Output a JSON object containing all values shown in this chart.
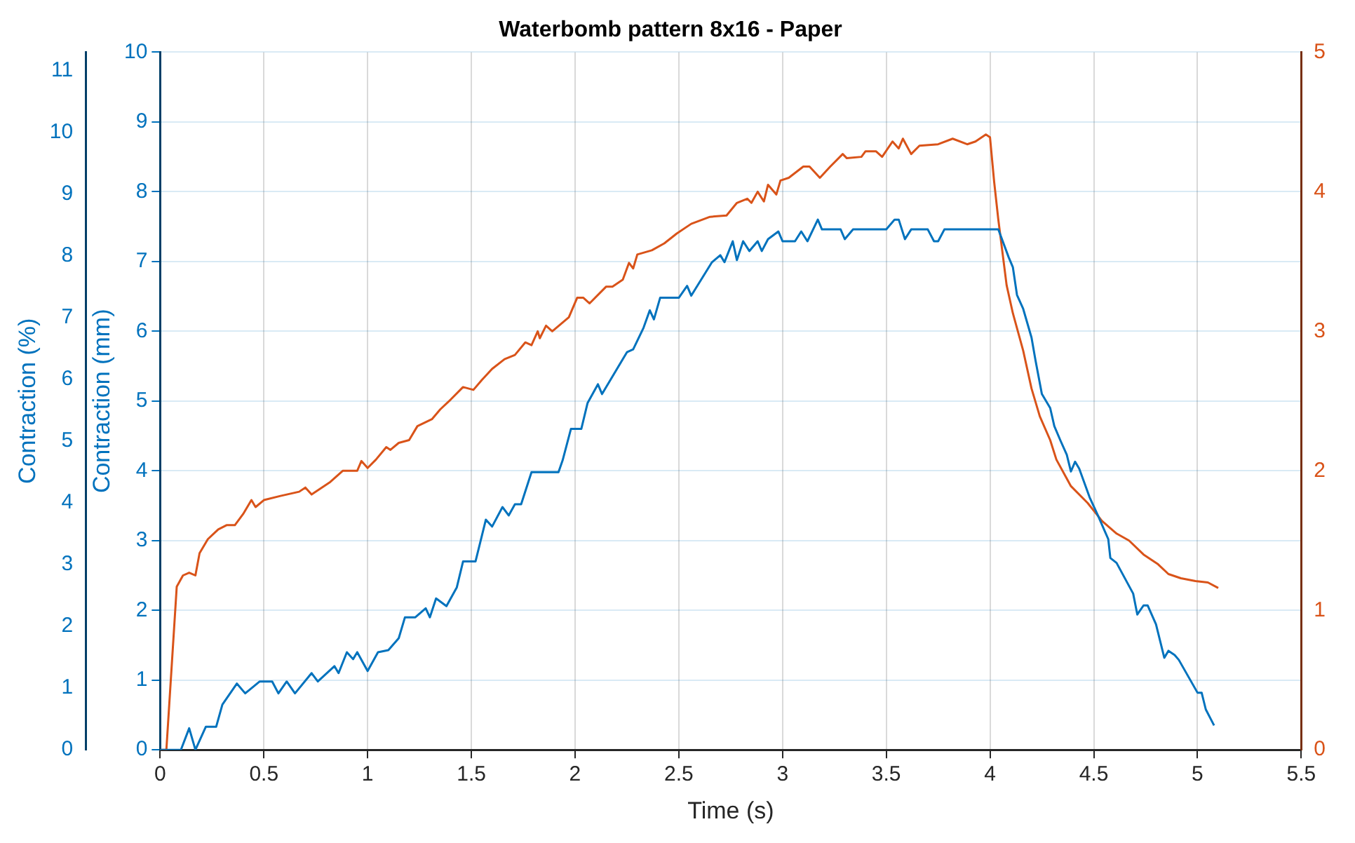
{
  "chart_data": {
    "type": "line",
    "title": "Waterbomb pattern 8x16 - Paper",
    "xlabel": "Time (s)",
    "ylabel": "Contraction (mm)",
    "y3label": "Contraction (%)",
    "xlim": [
      0,
      5.5
    ],
    "xticks": [
      0,
      0.5,
      1,
      1.5,
      2,
      2.5,
      3,
      3.5,
      4,
      4.5,
      5,
      5.5
    ],
    "ylim": [
      0,
      10
    ],
    "yticks": [
      0,
      1,
      2,
      3,
      4,
      5,
      6,
      7,
      8,
      9,
      10
    ],
    "y2lim": [
      0,
      5
    ],
    "y2ticks": [
      0,
      1,
      2,
      3,
      4,
      5
    ],
    "y3lim": [
      0,
      11.3
    ],
    "y3ticks": [
      0,
      1,
      2,
      3,
      4,
      5,
      6,
      7,
      8,
      9,
      10,
      11
    ],
    "grid": true,
    "legend": false,
    "marker": "none",
    "line_style": "solid",
    "series": [
      {
        "color": "#0072bd",
        "axis": "y",
        "x": [
          0,
          0.1,
          0.14,
          0.17,
          0.22,
          0.27,
          0.3,
          0.37,
          0.41,
          0.48,
          0.54,
          0.57,
          0.61,
          0.65,
          0.73,
          0.76,
          0.84,
          0.86,
          0.9,
          0.93,
          0.95,
          1.0,
          1.05,
          1.1,
          1.15,
          1.18,
          1.23,
          1.28,
          1.3,
          1.33,
          1.38,
          1.43,
          1.46,
          1.52,
          1.57,
          1.6,
          1.65,
          1.68,
          1.71,
          1.74,
          1.79,
          1.92,
          1.94,
          1.98,
          2.03,
          2.06,
          2.11,
          2.13,
          2.25,
          2.28,
          2.33,
          2.36,
          2.38,
          2.41,
          2.5,
          2.54,
          2.56,
          2.66,
          2.7,
          2.72,
          2.76,
          2.78,
          2.81,
          2.84,
          2.88,
          2.9,
          2.93,
          2.98,
          3.0,
          3.06,
          3.09,
          3.12,
          3.17,
          3.19,
          3.28,
          3.3,
          3.34,
          3.5,
          3.54,
          3.56,
          3.59,
          3.62,
          3.7,
          3.73,
          3.75,
          3.78,
          4.04,
          4.09,
          4.11,
          4.13,
          4.16,
          4.2,
          4.22,
          4.25,
          4.29,
          4.31,
          4.34,
          4.37,
          4.39,
          4.41,
          4.43,
          4.48,
          4.52,
          4.57,
          4.58,
          4.61,
          4.69,
          4.71,
          4.74,
          4.76,
          4.8,
          4.84,
          4.86,
          4.89,
          4.91,
          5.0,
          5.02,
          5.04,
          5.08
        ],
        "values": [
          0,
          0,
          0.31,
          0,
          0.33,
          0.33,
          0.65,
          0.95,
          0.81,
          0.98,
          0.98,
          0.81,
          0.98,
          0.81,
          1.1,
          0.98,
          1.2,
          1.1,
          1.4,
          1.3,
          1.4,
          1.13,
          1.4,
          1.43,
          1.6,
          1.9,
          1.9,
          2.03,
          1.9,
          2.17,
          2.06,
          2.33,
          2.7,
          2.7,
          3.3,
          3.2,
          3.48,
          3.36,
          3.52,
          3.52,
          3.98,
          3.98,
          4.15,
          4.6,
          4.6,
          4.97,
          5.24,
          5.1,
          5.7,
          5.74,
          6.05,
          6.3,
          6.17,
          6.48,
          6.48,
          6.65,
          6.51,
          6.99,
          7.09,
          6.99,
          7.29,
          7.02,
          7.29,
          7.15,
          7.29,
          7.15,
          7.32,
          7.43,
          7.29,
          7.29,
          7.43,
          7.29,
          7.6,
          7.46,
          7.46,
          7.32,
          7.46,
          7.46,
          7.6,
          7.6,
          7.32,
          7.46,
          7.46,
          7.29,
          7.29,
          7.46,
          7.46,
          7.06,
          6.92,
          6.52,
          6.32,
          5.91,
          5.57,
          5.1,
          4.9,
          4.64,
          4.43,
          4.23,
          3.99,
          4.13,
          4.03,
          3.62,
          3.36,
          3.02,
          2.75,
          2.68,
          2.24,
          1.94,
          2.07,
          2.07,
          1.8,
          1.32,
          1.42,
          1.36,
          1.29,
          0.82,
          0.82,
          0.58,
          0.35
        ]
      },
      {
        "color": "#d95319",
        "axis": "y2",
        "x": [
          0,
          0.03,
          0.08,
          0.11,
          0.14,
          0.17,
          0.19,
          0.23,
          0.28,
          0.32,
          0.36,
          0.4,
          0.44,
          0.46,
          0.5,
          0.58,
          0.67,
          0.7,
          0.73,
          0.82,
          0.88,
          0.95,
          0.97,
          1.0,
          1.04,
          1.09,
          1.11,
          1.15,
          1.2,
          1.24,
          1.31,
          1.35,
          1.4,
          1.46,
          1.51,
          1.55,
          1.6,
          1.66,
          1.71,
          1.76,
          1.79,
          1.82,
          1.83,
          1.86,
          1.89,
          1.97,
          2.01,
          2.04,
          2.07,
          2.15,
          2.18,
          2.23,
          2.26,
          2.28,
          2.3,
          2.37,
          2.43,
          2.49,
          2.56,
          2.65,
          2.73,
          2.78,
          2.83,
          2.85,
          2.88,
          2.91,
          2.93,
          2.97,
          2.99,
          3.03,
          3.1,
          3.13,
          3.18,
          3.23,
          3.29,
          3.31,
          3.38,
          3.4,
          3.45,
          3.48,
          3.53,
          3.56,
          3.58,
          3.62,
          3.66,
          3.75,
          3.82,
          3.89,
          3.93,
          3.98,
          4.0,
          4.02,
          4.04,
          4.08,
          4.11,
          4.16,
          4.2,
          4.24,
          4.29,
          4.32,
          4.39,
          4.47,
          4.54,
          4.61,
          4.67,
          4.74,
          4.81,
          4.86,
          4.92,
          4.99,
          5.05,
          5.1
        ],
        "values": [
          0,
          0,
          1.17,
          1.25,
          1.27,
          1.25,
          1.41,
          1.51,
          1.58,
          1.61,
          1.61,
          1.69,
          1.79,
          1.74,
          1.79,
          1.82,
          1.85,
          1.88,
          1.83,
          1.92,
          2.0,
          2.0,
          2.07,
          2.02,
          2.08,
          2.17,
          2.15,
          2.2,
          2.22,
          2.32,
          2.37,
          2.44,
          2.51,
          2.6,
          2.58,
          2.65,
          2.73,
          2.8,
          2.83,
          2.92,
          2.9,
          3.0,
          2.95,
          3.04,
          3.0,
          3.1,
          3.24,
          3.24,
          3.2,
          3.32,
          3.32,
          3.37,
          3.49,
          3.45,
          3.55,
          3.58,
          3.63,
          3.7,
          3.77,
          3.82,
          3.83,
          3.92,
          3.95,
          3.92,
          4.0,
          3.93,
          4.05,
          3.98,
          4.08,
          4.1,
          4.18,
          4.18,
          4.1,
          4.18,
          4.27,
          4.24,
          4.25,
          4.29,
          4.29,
          4.25,
          4.36,
          4.31,
          4.38,
          4.27,
          4.33,
          4.34,
          4.38,
          4.34,
          4.36,
          4.41,
          4.39,
          4.07,
          3.8,
          3.33,
          3.13,
          2.86,
          2.59,
          2.39,
          2.22,
          2.08,
          1.89,
          1.77,
          1.64,
          1.55,
          1.5,
          1.4,
          1.33,
          1.26,
          1.23,
          1.21,
          1.2,
          1.16
        ]
      }
    ]
  }
}
